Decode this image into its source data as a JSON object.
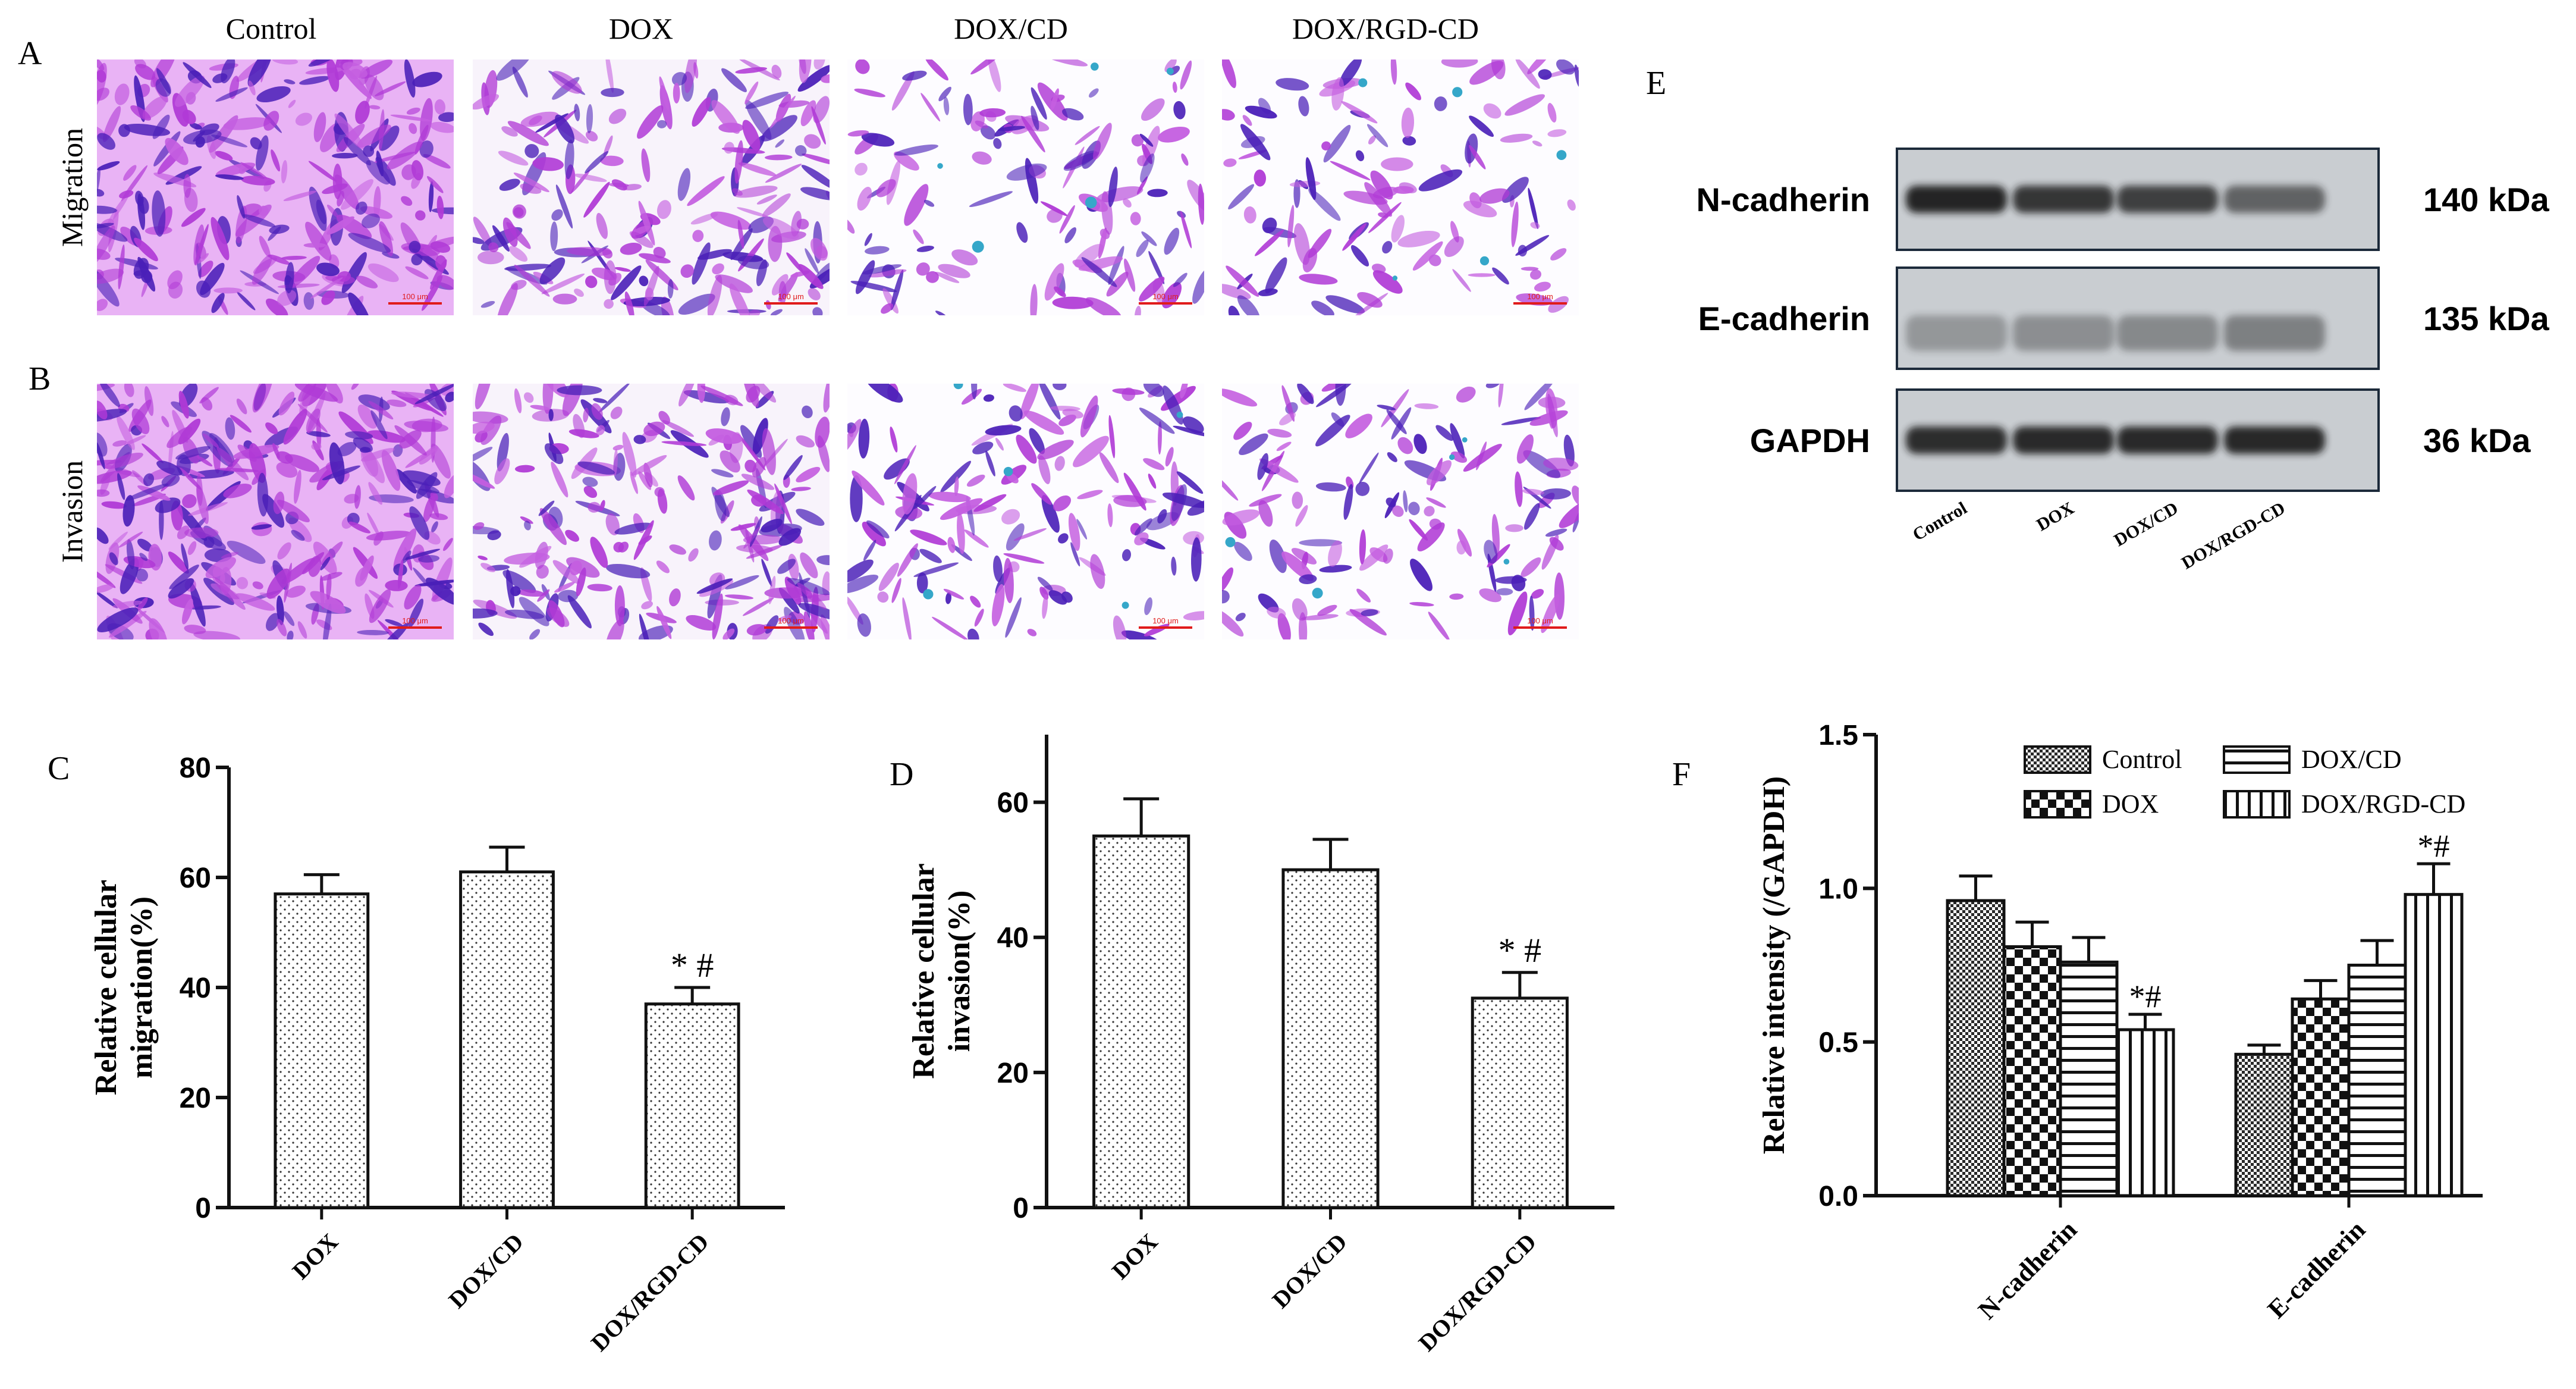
{
  "panel_letters": [
    "A",
    "B",
    "C",
    "D",
    "E",
    "F"
  ],
  "micrograph_columns": [
    "Control",
    "DOX",
    "DOX/CD",
    "DOX/RGD-CD"
  ],
  "micrograph_rows": [
    "Migration",
    "Invasion"
  ],
  "scale_bar_label": "100 μm",
  "western_blot": {
    "bands": [
      {
        "label": "N-cadherin",
        "size": "140 kDa",
        "intensity": [
          0.95,
          0.85,
          0.8,
          0.6
        ]
      },
      {
        "label": "E-cadherin",
        "size": "135 kDa",
        "intensity": [
          0.3,
          0.4,
          0.45,
          0.55
        ]
      },
      {
        "label": "GAPDH",
        "size": "36 kDa",
        "intensity": [
          0.9,
          0.92,
          0.92,
          0.93
        ]
      }
    ],
    "lanes": [
      "Control",
      "DOX",
      "DOX/CD",
      "DOX/RGD-CD"
    ]
  },
  "colors": {
    "stain_purple": "#b03ad6",
    "stain_dark": "#4a1fb8",
    "stain_light": "#e4a8f4",
    "blot_bg": "#c9cdd1",
    "blot_band": "#1c1c1c"
  },
  "chart_data": [
    {
      "panel": "C",
      "type": "bar",
      "categories": [
        "DOX",
        "DOX/CD",
        "DOX/RGD-CD"
      ],
      "values": [
        57,
        61,
        37
      ],
      "errors": [
        3.5,
        4.5,
        3
      ],
      "annotations": [
        "",
        "",
        "* #"
      ],
      "ylabel": [
        "Relative cellular",
        "migration(%)"
      ],
      "ylim": [
        0,
        80
      ],
      "yticks": [
        0,
        20,
        40,
        60,
        80
      ],
      "pattern": "dots"
    },
    {
      "panel": "D",
      "type": "bar",
      "categories": [
        "DOX",
        "DOX/CD",
        "DOX/RGD-CD"
      ],
      "values": [
        55,
        50,
        31
      ],
      "errors": [
        5.5,
        4.5,
        3.8
      ],
      "annotations": [
        "",
        "",
        "* #"
      ],
      "ylabel": [
        "Relative cellular",
        "invasion(%)"
      ],
      "ylim": [
        0,
        70
      ],
      "yticks": [
        0,
        20,
        40,
        60
      ],
      "pattern": "dots"
    },
    {
      "panel": "F",
      "type": "bar",
      "categories": [
        "N-cadherin",
        "E-cadherin"
      ],
      "series": [
        {
          "name": "Control",
          "values": [
            0.96,
            0.46
          ],
          "errors": [
            0.08,
            0.03
          ],
          "pattern": "checker-fine"
        },
        {
          "name": "DOX",
          "values": [
            0.81,
            0.64
          ],
          "errors": [
            0.08,
            0.06
          ],
          "pattern": "checker"
        },
        {
          "name": "DOX/CD",
          "values": [
            0.76,
            0.75
          ],
          "errors": [
            0.08,
            0.08
          ],
          "pattern": "hstripes"
        },
        {
          "name": "DOX/RGD-CD",
          "values": [
            0.54,
            0.98
          ],
          "errors": [
            0.05,
            0.1
          ],
          "pattern": "vstripes"
        }
      ],
      "annotations": [
        [
          "",
          "",
          "",
          "*#"
        ],
        [
          "",
          "",
          "",
          "*#"
        ]
      ],
      "ylabel": "Relative intensity (/GAPDH)",
      "ylim": [
        0,
        1.5
      ],
      "yticks": [
        "0.0",
        "0.5",
        "1.0",
        "1.5"
      ],
      "legend_position": "top-center"
    }
  ]
}
